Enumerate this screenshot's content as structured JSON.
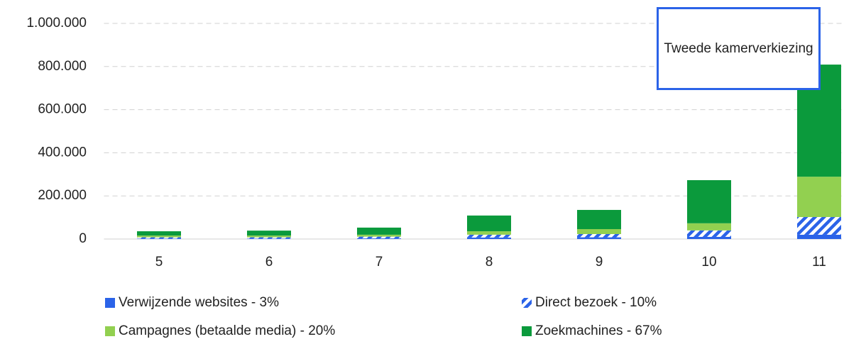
{
  "chart_data": {
    "type": "stacked_bar",
    "annotation": "Tweede kamerverkiezing",
    "categories": [
      "5",
      "6",
      "7",
      "8",
      "9",
      "10",
      "11"
    ],
    "series": [
      {
        "name": "Verwijzende websites - 3%",
        "color": "#2b63e8",
        "values": [
          2000,
          2000,
          3000,
          7000,
          8000,
          10000,
          20000
        ]
      },
      {
        "name": "Direct bezoek - 10%",
        "color": "#2b63e8",
        "hatch": true,
        "values": [
          6000,
          6000,
          8000,
          13000,
          15000,
          30000,
          82000
        ]
      },
      {
        "name": "Campagnes (betaalde media) - 20%",
        "color": "#92d050",
        "values": [
          8000,
          8000,
          9000,
          16000,
          23000,
          33000,
          187000
        ]
      },
      {
        "name": "Zoekmachines - 67%",
        "color": "#0b9a3c",
        "values": [
          20000,
          23000,
          33000,
          73000,
          89000,
          200000,
          520000
        ]
      }
    ],
    "ylim": [
      0,
      1000000
    ],
    "yticks": [
      0,
      {
        "value": 200000,
        "label": "200.000"
      },
      {
        "value": 400000,
        "label": "400.000"
      },
      {
        "value": 600000,
        "label": "600.000"
      },
      {
        "value": 800000,
        "label": "800.000"
      },
      {
        "value": 1000000,
        "label": "1.000.000"
      }
    ],
    "grid": true,
    "legend": "bottom"
  }
}
